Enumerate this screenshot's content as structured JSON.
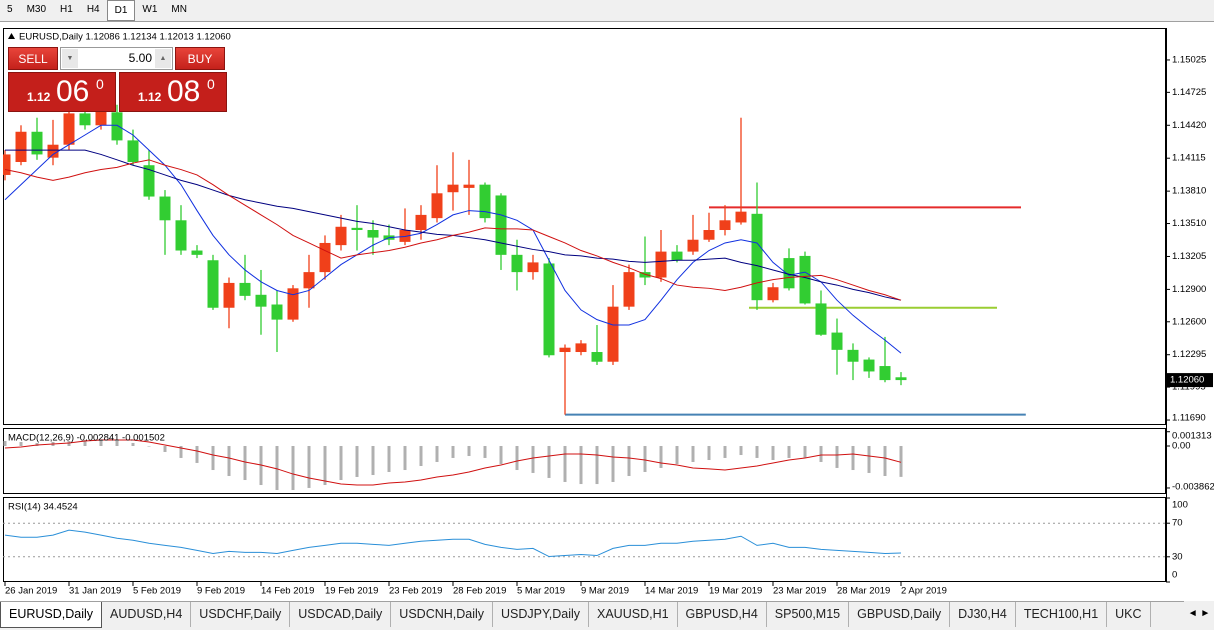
{
  "toolbar": {
    "timeframes": [
      "5",
      "M30",
      "H1",
      "H4",
      "D1",
      "W1",
      "MN"
    ],
    "active": 4
  },
  "trade_panel": {
    "sell": "SELL",
    "buy": "BUY",
    "volume": "5.00",
    "bid": {
      "prefix": "1.12",
      "big": "06",
      "sup": "0"
    },
    "ask": {
      "prefix": "1.12",
      "big": "08",
      "sup": "0"
    }
  },
  "chart_data": [
    {
      "type": "candlestick",
      "title": "EURUSD,Daily  1.12086 1.12134 1.12013 1.12060",
      "categories": [
        "26 Jan 2019",
        null,
        null,
        null,
        "31 Jan 2019",
        null,
        null,
        null,
        "5 Feb 2019",
        null,
        null,
        null,
        "9 Feb 2019",
        null,
        null,
        null,
        "14 Feb 2019",
        null,
        null,
        null,
        "19 Feb 2019",
        null,
        null,
        null,
        "23 Feb 2019",
        null,
        null,
        null,
        "28 Feb 2019",
        null,
        null,
        null,
        "5 Mar 2019",
        null,
        null,
        null,
        "9 Mar 2019",
        null,
        null,
        null,
        "14 Mar 2019",
        null,
        null,
        null,
        "19 Mar 2019",
        null,
        null,
        null,
        "23 Mar 2019",
        null,
        null,
        null,
        "28 Mar 2019",
        null,
        null,
        null,
        "2 Apr 2019"
      ],
      "open": [
        1.1396,
        1.1408,
        1.1436,
        1.1412,
        1.1424,
        1.1453,
        1.1442,
        1.1454,
        1.1428,
        1.1405,
        1.1376,
        1.1354,
        1.1326,
        1.1317,
        1.1273,
        1.1296,
        1.1285,
        1.1276,
        1.1262,
        1.1291,
        1.1306,
        1.1331,
        1.1347,
        1.1345,
        1.134,
        1.1334,
        1.1345,
        1.1356,
        1.138,
        1.1384,
        1.1387,
        1.1377,
        1.1322,
        1.1306,
        1.1314,
        1.1232,
        1.1232,
        1.1232,
        1.1223,
        1.1274,
        1.1306,
        1.1301,
        1.1325,
        1.1325,
        1.1336,
        1.1345,
        1.1352,
        1.136,
        1.128,
        1.1319,
        1.1321,
        1.1277,
        1.125,
        1.1234,
        1.1225,
        1.1219,
        1.12086
      ],
      "high": [
        1.1419,
        1.1442,
        1.1449,
        1.1447,
        1.1465,
        1.1461,
        1.1465,
        1.1461,
        1.1438,
        1.1419,
        1.1382,
        1.1368,
        1.1331,
        1.1322,
        1.1301,
        1.1322,
        1.1308,
        1.1289,
        1.1294,
        1.1322,
        1.134,
        1.1359,
        1.1368,
        1.1354,
        1.135,
        1.1365,
        1.1368,
        1.1405,
        1.1417,
        1.141,
        1.1389,
        1.1379,
        1.1336,
        1.1322,
        1.1319,
        1.1239,
        1.1243,
        1.1257,
        1.1294,
        1.1313,
        1.1339,
        1.1345,
        1.1331,
        1.1359,
        1.1361,
        1.1368,
        1.1449,
        1.1389,
        1.1296,
        1.1328,
        1.1325,
        1.1289,
        1.1263,
        1.124,
        1.1227,
        1.1246,
        1.12134
      ],
      "low": [
        1.1391,
        1.1405,
        1.141,
        1.1405,
        1.1419,
        1.1438,
        1.1438,
        1.1424,
        1.1405,
        1.1373,
        1.1322,
        1.1322,
        1.1319,
        1.1271,
        1.1254,
        1.128,
        1.1248,
        1.1232,
        1.126,
        1.1273,
        1.1299,
        1.1326,
        1.1326,
        1.1322,
        1.1331,
        1.1331,
        1.1336,
        1.1352,
        1.1363,
        1.1359,
        1.1352,
        1.1308,
        1.1289,
        1.1299,
        1.1227,
        1.1174,
        1.1229,
        1.122,
        1.122,
        1.1271,
        1.1294,
        1.1297,
        1.1315,
        1.1322,
        1.1334,
        1.134,
        1.135,
        1.1271,
        1.1278,
        1.1289,
        1.1276,
        1.1247,
        1.1211,
        1.1206,
        1.1208,
        1.1204,
        1.12013
      ],
      "close": [
        1.1415,
        1.1436,
        1.1415,
        1.1424,
        1.1453,
        1.1442,
        1.1456,
        1.1428,
        1.1408,
        1.1376,
        1.1354,
        1.1326,
        1.1322,
        1.1273,
        1.1296,
        1.1284,
        1.1274,
        1.1262,
        1.1291,
        1.1306,
        1.1333,
        1.1348,
        1.1345,
        1.1338,
        1.1336,
        1.1345,
        1.1359,
        1.1379,
        1.1387,
        1.1387,
        1.1356,
        1.1322,
        1.1306,
        1.1315,
        1.1229,
        1.1236,
        1.124,
        1.1223,
        1.1274,
        1.1306,
        1.1301,
        1.1325,
        1.1317,
        1.1336,
        1.1345,
        1.1354,
        1.1362,
        1.128,
        1.1292,
        1.1291,
        1.1277,
        1.1248,
        1.1234,
        1.1223,
        1.1214,
        1.1206,
        1.1206
      ],
      "up_color": "#f0401a",
      "down_color": "#32cd32",
      "lines": [
        {
          "color": "#1030e0",
          "values": [
            1.1373,
            1.1387,
            1.1401,
            1.1415,
            1.1424,
            1.1433,
            1.1442,
            1.1442,
            1.1433,
            1.1419,
            1.1405,
            1.1387,
            1.1363,
            1.134,
            1.1322,
            1.1308,
            1.1297,
            1.1289,
            1.1285,
            1.1289,
            1.1301,
            1.1313,
            1.1322,
            1.1331,
            1.1338,
            1.1339,
            1.1342,
            1.135,
            1.1359,
            1.1363,
            1.1362,
            1.1359,
            1.1354,
            1.1345,
            1.1317,
            1.1289,
            1.1271,
            1.1262,
            1.1257,
            1.1257,
            1.1262,
            1.128,
            1.1299,
            1.1315,
            1.1326,
            1.1333,
            1.1336,
            1.1333,
            1.1315,
            1.1303,
            1.1306,
            1.1297,
            1.128,
            1.1266,
            1.1254,
            1.1243,
            1.1231
          ]
        },
        {
          "color": "#000080",
          "values": [
            1.1419,
            1.1419,
            1.1419,
            1.1419,
            1.1419,
            1.1419,
            1.1415,
            1.141,
            1.1405,
            1.1401,
            1.1396,
            1.1391,
            1.1387,
            1.1382,
            1.1377,
            1.1373,
            1.137,
            1.1367,
            1.1365,
            1.1362,
            1.1359,
            1.1356,
            1.1353,
            1.1351,
            1.1348,
            1.1345,
            1.1343,
            1.1341,
            1.134,
            1.1338,
            1.1336,
            1.1333,
            1.133,
            1.1327,
            1.1325,
            1.1322,
            1.1321,
            1.1319,
            1.1318,
            1.1316,
            1.1315,
            1.1316,
            1.1317,
            1.1317,
            1.1318,
            1.1319,
            1.1315,
            1.1312,
            1.1308,
            1.1304,
            1.1301,
            1.1297,
            1.1294,
            1.129,
            1.1287,
            1.1283,
            1.128
          ]
        },
        {
          "color": "#d01010",
          "values": [
            1.1401,
            1.1398,
            1.1394,
            1.1391,
            1.1394,
            1.1398,
            1.1401,
            1.1403,
            1.1407,
            1.141,
            1.1405,
            1.1401,
            1.1396,
            1.1387,
            1.1377,
            1.1368,
            1.1359,
            1.135,
            1.134,
            1.1333,
            1.1326,
            1.1319,
            1.1322,
            1.1324,
            1.1326,
            1.1329,
            1.1333,
            1.1336,
            1.134,
            1.1343,
            1.1347,
            1.1346,
            1.1346,
            1.1345,
            1.1339,
            1.1333,
            1.1326,
            1.1321,
            1.1315,
            1.131,
            1.1304,
            1.13,
            1.1294,
            1.1292,
            1.1291,
            1.1289,
            1.1292,
            1.1296,
            1.1299,
            1.1301,
            1.1302,
            1.1303,
            1.1299,
            1.1294,
            1.1289,
            1.1285,
            1.128
          ]
        }
      ],
      "levels": [
        {
          "value": 1.1366,
          "color": "#e52b2b",
          "start": 44,
          "end": 63.5
        },
        {
          "value": 1.1273,
          "color": "#9acd32",
          "start": 46.5,
          "end": 62
        },
        {
          "value": 1.1174,
          "color": "#4682b4",
          "start": 35,
          "end": 63.8
        }
      ],
      "last_price": {
        "value": 1.1206,
        "label": "1.12060"
      },
      "ylim": [
        1.11644,
        1.15321
      ],
      "yticks": [
        1.15025,
        1.14725,
        {
          "value": 1.1442,
          "label": "1.14420"
        },
        1.14115,
        {
          "value": 1.1381,
          "label": "1.13810"
        },
        {
          "value": 1.1351,
          "label": "1.13510"
        },
        1.13205,
        {
          "value": 1.129,
          "label": "1.12900"
        },
        {
          "value": 1.126,
          "label": "1.12600"
        },
        1.12295,
        1.11995,
        {
          "value": 1.1169,
          "label": "1.11690"
        }
      ]
    },
    {
      "type": "macd",
      "title": "MACD(12,26,9) -0.002841 -0.001502",
      "color": "#b0b0b0",
      "signal_color": "#d01010",
      "values": [
        0.00046,
        0.00037,
        0.00028,
        0.00037,
        0.00046,
        0.00055,
        0.00055,
        0.00046,
        0.00028,
        0,
        -0.00055,
        -0.0011,
        -0.00156,
        -0.00221,
        -0.00276,
        -0.00313,
        -0.00359,
        -0.00405,
        -0.00405,
        -0.00386,
        -0.00359,
        -0.00313,
        -0.00285,
        -0.00267,
        -0.00239,
        -0.00221,
        -0.00184,
        -0.00147,
        -0.0011,
        -0.00092,
        -0.0011,
        -0.00166,
        -0.00221,
        -0.00248,
        -0.00294,
        -0.00331,
        -0.0035,
        -0.0035,
        -0.00331,
        -0.00276,
        -0.00239,
        -0.00202,
        -0.00166,
        -0.00147,
        -0.00129,
        -0.0011,
        -0.00083,
        -0.0011,
        -0.00129,
        -0.0011,
        -0.0011,
        -0.00147,
        -0.00202,
        -0.00221,
        -0.00248,
        -0.00276,
        -0.002841
      ],
      "signal": [
        -0.00018,
        -9e-05,
        9e-05,
        0.00018,
        0.00028,
        0.00046,
        0.00055,
        0.00055,
        0.00055,
        0.00037,
        9e-05,
        -0.00018,
        -0.00046,
        -0.00083,
        -0.0011,
        -0.00147,
        -0.00175,
        -0.0021,
        -0.00258,
        -0.00294,
        -0.00322,
        -0.0035,
        -0.00359,
        -0.00359,
        -0.0034,
        -0.00331,
        -0.00313,
        -0.00285,
        -0.00267,
        -0.00239,
        -0.00202,
        -0.00175,
        -0.00138,
        -0.0011,
        -0.00092,
        -0.00074,
        -0.00074,
        -0.00083,
        -0.00101,
        -0.0011,
        -0.00129,
        -0.00156,
        -0.00175,
        -0.00202,
        -0.0021,
        -0.00221,
        -0.00202,
        -0.00184,
        -0.00156,
        -0.00129,
        -0.0011,
        -0.00083,
        -0.00083,
        -0.00074,
        -0.00092,
        -0.0011,
        -0.001502
      ],
      "ylim": [
        -0.004416,
        0.001564
      ],
      "yticks": [
        0.001313,
        {
          "value": 0,
          "label": "0.00"
        },
        -0.003862
      ]
    },
    {
      "type": "line",
      "title": "RSI(14) 34.4524",
      "color": "#2a8fd8",
      "values": [
        55.8,
        53.3,
        53.3,
        55.8,
        61.8,
        59.4,
        55.8,
        52.1,
        49.7,
        46.1,
        43.6,
        41.2,
        37.6,
        33.9,
        36.4,
        35.2,
        35.2,
        33.9,
        37.6,
        41.2,
        43.6,
        46.1,
        46.1,
        44.8,
        43.6,
        46.1,
        48.5,
        49.7,
        50.9,
        50.9,
        44.8,
        41.2,
        38.8,
        40.0,
        30.3,
        31.5,
        32.7,
        31.5,
        40.0,
        43.6,
        43.6,
        46.1,
        46.1,
        48.5,
        49.7,
        50.9,
        54.5,
        43.6,
        46.1,
        41.2,
        41.2,
        38.8,
        37.6,
        36.4,
        35.2,
        33.9,
        34.4524
      ],
      "ylim": [
        0,
        100
      ],
      "yticks": [
        100,
        70,
        30,
        0
      ],
      "grid": "dotted"
    }
  ],
  "tabs": [
    "EURUSD,Daily",
    "AUDUSD,H4",
    "USDCHF,Daily",
    "USDCAD,Daily",
    "USDCNH,Daily",
    "USDJPY,Daily",
    "XAUUSD,H1",
    "GBPUSD,H4",
    "SP500,M15",
    "GBPUSD,Daily",
    "DJ30,H4",
    "TECH100,H1",
    "UKC"
  ],
  "active_tab": 0
}
